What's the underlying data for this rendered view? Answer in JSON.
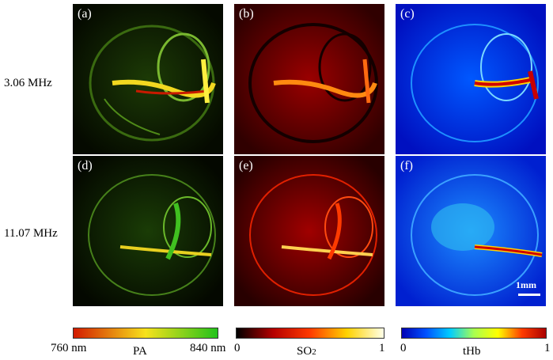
{
  "rows": [
    "3.06 MHz",
    "11.07 MHz"
  ],
  "panel_labels": [
    "(a)",
    "(b)",
    "(c)",
    "(d)",
    "(e)",
    "(f)"
  ],
  "scale_bar": "1mm",
  "colorbars": {
    "pa": {
      "min": "760 nm",
      "max": "840 nm",
      "title": "PA",
      "colors": [
        "#d21a00",
        "#f7e21c",
        "#22c21a"
      ]
    },
    "so2": {
      "min": "0",
      "max": "1",
      "title": "SO",
      "title_sub": "2",
      "colors": [
        "#000000",
        "#b50000",
        "#ff3a00",
        "#ffd200",
        "#ffffe8"
      ]
    },
    "thb": {
      "min": "0",
      "max": "1",
      "title": "tHb",
      "colors": [
        "#0000b4",
        "#0050ff",
        "#00ccff",
        "#a8ff50",
        "#ffff00",
        "#ff3c00",
        "#aa0000"
      ]
    }
  }
}
